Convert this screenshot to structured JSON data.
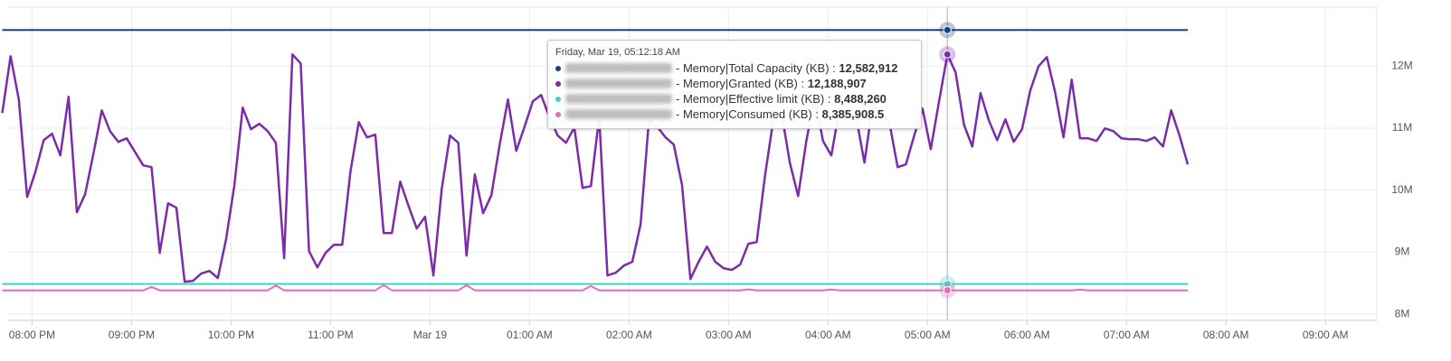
{
  "chart_data": {
    "type": "line",
    "x": [
      "07:42 PM",
      "07:47 PM",
      "07:52 PM",
      "07:57 PM",
      "08:02 PM",
      "08:07 PM",
      "08:12 PM",
      "08:17 PM",
      "08:22 PM",
      "08:27 PM",
      "08:32 PM",
      "08:37 PM",
      "08:42 PM",
      "08:47 PM",
      "08:52 PM",
      "08:57 PM",
      "09:02 PM",
      "09:07 PM",
      "09:12 PM",
      "09:17 PM",
      "09:22 PM",
      "09:27 PM",
      "09:32 PM",
      "09:37 PM",
      "09:42 PM",
      "09:47 PM",
      "09:52 PM",
      "09:57 PM",
      "10:02 PM",
      "10:07 PM",
      "10:12 PM",
      "10:17 PM",
      "10:22 PM",
      "10:27 PM",
      "10:32 PM",
      "10:37 PM",
      "10:42 PM",
      "10:47 PM",
      "10:52 PM",
      "10:57 PM",
      "11:02 PM",
      "11:07 PM",
      "11:12 PM",
      "11:17 PM",
      "11:22 PM",
      "11:27 PM",
      "11:32 PM",
      "11:37 PM",
      "11:42 PM",
      "11:47 PM",
      "11:52 PM",
      "11:57 PM",
      "12:02 AM",
      "12:07 AM",
      "12:12 AM",
      "12:17 AM",
      "12:22 AM",
      "12:27 AM",
      "12:32 AM",
      "12:37 AM",
      "12:42 AM",
      "12:47 AM",
      "12:52 AM",
      "12:57 AM",
      "01:02 AM",
      "01:07 AM",
      "01:12 AM",
      "01:17 AM",
      "01:22 AM",
      "01:27 AM",
      "01:32 AM",
      "01:37 AM",
      "01:42 AM",
      "01:47 AM",
      "01:52 AM",
      "01:57 AM",
      "02:02 AM",
      "02:07 AM",
      "02:12 AM",
      "02:17 AM",
      "02:22 AM",
      "02:27 AM",
      "02:32 AM",
      "02:37 AM",
      "02:42 AM",
      "02:47 AM",
      "02:52 AM",
      "02:57 AM",
      "03:02 AM",
      "03:07 AM",
      "03:12 AM",
      "03:17 AM",
      "03:22 AM",
      "03:27 AM",
      "03:32 AM",
      "03:37 AM",
      "03:42 AM",
      "03:47 AM",
      "03:52 AM",
      "03:57 AM",
      "04:02 AM",
      "04:07 AM",
      "04:12 AM",
      "04:17 AM",
      "04:22 AM",
      "04:27 AM",
      "04:32 AM",
      "04:37 AM",
      "04:42 AM",
      "04:47 AM",
      "04:52 AM",
      "04:57 AM",
      "05:02 AM",
      "05:07 AM",
      "05:12 AM",
      "05:17 AM",
      "05:22 AM",
      "05:27 AM",
      "05:32 AM",
      "05:37 AM",
      "05:42 AM",
      "05:47 AM",
      "05:52 AM",
      "05:57 AM",
      "06:02 AM",
      "06:07 AM",
      "06:12 AM",
      "06:17 AM",
      "06:22 AM",
      "06:27 AM",
      "06:32 AM",
      "06:37 AM",
      "06:42 AM",
      "06:47 AM",
      "06:52 AM",
      "06:57 AM",
      "07:02 AM",
      "07:07 AM",
      "07:12 AM",
      "07:17 AM",
      "07:22 AM",
      "07:27 AM",
      "07:32 AM",
      "07:37 AM"
    ],
    "series": [
      {
        "name": "Memory|Total Capacity (KB)",
        "color": "#1b3f7f",
        "values": [
          12582912,
          12582912,
          12582912,
          12582912,
          12582912,
          12582912,
          12582912,
          12582912,
          12582912,
          12582912,
          12582912,
          12582912,
          12582912,
          12582912,
          12582912,
          12582912,
          12582912,
          12582912,
          12582912,
          12582912,
          12582912,
          12582912,
          12582912,
          12582912,
          12582912,
          12582912,
          12582912,
          12582912,
          12582912,
          12582912,
          12582912,
          12582912,
          12582912,
          12582912,
          12582912,
          12582912,
          12582912,
          12582912,
          12582912,
          12582912,
          12582912,
          12582912,
          12582912,
          12582912,
          12582912,
          12582912,
          12582912,
          12582912,
          12582912,
          12582912,
          12582912,
          12582912,
          12582912,
          12582912,
          12582912,
          12582912,
          12582912,
          12582912,
          12582912,
          12582912,
          12582912,
          12582912,
          12582912,
          12582912,
          12582912,
          12582912,
          12582912,
          12582912,
          12582912,
          12582912,
          12582912,
          12582912,
          12582912,
          12582912,
          12582912,
          12582912,
          12582912,
          12582912,
          12582912,
          12582912,
          12582912,
          12582912,
          12582912,
          12582912,
          12582912,
          12582912,
          12582912,
          12582912,
          12582912,
          12582912,
          12582912,
          12582912,
          12582912,
          12582912,
          12582912,
          12582912,
          12582912,
          12582912,
          12582912,
          12582912,
          12582912,
          12582912,
          12582912,
          12582912,
          12582912,
          12582912,
          12582912,
          12582912,
          12582912,
          12582912,
          12582912,
          12582912,
          12582912,
          12582912,
          12582912,
          12582912,
          12582912,
          12582912,
          12582912,
          12582912,
          12582912,
          12582912,
          12582912,
          12582912,
          12582912,
          12582912,
          12582912,
          12582912,
          12582912,
          12582912,
          12582912,
          12582912,
          12582912,
          12582912,
          12582912,
          12582912,
          12582912,
          12582912,
          12582912,
          12582912,
          12582912,
          12582912,
          12582912,
          12582912
        ]
      },
      {
        "name": "Memory|Granted (KB)",
        "color": "#7b2ca8",
        "values": [
          11244000,
          12160000,
          11462000,
          9891000,
          10298000,
          10807000,
          10909000,
          10560000,
          11505000,
          9644000,
          9935000,
          10589000,
          11287000,
          10953000,
          10778000,
          10836000,
          10618000,
          10400000,
          10371000,
          8989000,
          9789000,
          9716000,
          8524000,
          8538000,
          8655000,
          8698000,
          8582000,
          9207000,
          10080000,
          11331000,
          10982000,
          11069000,
          10953000,
          10764000,
          8902000,
          12189000,
          12044000,
          9018000,
          8756000,
          8989000,
          9120000,
          9120000,
          10298000,
          11098000,
          10851000,
          10895000,
          9309000,
          9309000,
          10138000,
          9745000,
          9382000,
          9571000,
          8625000,
          10007000,
          10880000,
          10764000,
          8945000,
          10255000,
          9629000,
          9920000,
          10735000,
          11462000,
          10633000,
          11025000,
          11433000,
          11535000,
          11171000,
          10880000,
          10764000,
          11011000,
          10036000,
          10065000,
          11185000,
          8625000,
          8669000,
          8785000,
          8844000,
          9455000,
          11127000,
          11025000,
          10851000,
          10735000,
          10080000,
          8567000,
          8844000,
          9091000,
          8844000,
          8742000,
          8713000,
          8800000,
          9135000,
          9164000,
          10225000,
          11127000,
          11244000,
          10444000,
          9905000,
          10807000,
          11491000,
          10793000,
          10560000,
          11316000,
          11244000,
          11171000,
          10444000,
          11389000,
          11200000,
          11098000,
          10371000,
          10415000,
          10880000,
          11316000,
          10662000,
          11433000,
          12188907,
          11898000,
          11055000,
          10705000,
          11564000,
          11127000,
          10807000,
          11142000,
          10778000,
          10982000,
          11607000,
          12000000,
          12145000,
          11578000,
          10851000,
          11782000,
          10836000,
          10836000,
          10793000,
          10996000,
          10953000,
          10836000,
          10822000,
          10822000,
          10793000,
          10851000,
          10705000,
          11287000,
          10880000,
          10415000
        ]
      },
      {
        "name": "Memory|Effective limit (KB)",
        "color": "#3fd6c6",
        "values": [
          8488260,
          8488260,
          8488260,
          8488260,
          8488260,
          8488260,
          8488260,
          8488260,
          8488260,
          8488260,
          8488260,
          8488260,
          8488260,
          8488260,
          8488260,
          8488260,
          8488260,
          8488260,
          8488260,
          8488260,
          8488260,
          8488260,
          8488260,
          8488260,
          8488260,
          8488260,
          8488260,
          8488260,
          8488260,
          8488260,
          8488260,
          8488260,
          8488260,
          8488260,
          8488260,
          8488260,
          8488260,
          8488260,
          8488260,
          8488260,
          8488260,
          8488260,
          8488260,
          8488260,
          8488260,
          8488260,
          8488260,
          8488260,
          8488260,
          8488260,
          8488260,
          8488260,
          8488260,
          8488260,
          8488260,
          8488260,
          8488260,
          8488260,
          8488260,
          8488260,
          8488260,
          8488260,
          8488260,
          8488260,
          8488260,
          8488260,
          8488260,
          8488260,
          8488260,
          8488260,
          8488260,
          8488260,
          8488260,
          8488260,
          8488260,
          8488260,
          8488260,
          8488260,
          8488260,
          8488260,
          8488260,
          8488260,
          8488260,
          8488260,
          8488260,
          8488260,
          8488260,
          8488260,
          8488260,
          8488260,
          8488260,
          8488260,
          8488260,
          8488260,
          8488260,
          8488260,
          8488260,
          8488260,
          8488260,
          8488260,
          8488260,
          8488260,
          8488260,
          8488260,
          8488260,
          8488260,
          8488260,
          8488260,
          8488260,
          8488260,
          8488260,
          8488260,
          8488260,
          8488260,
          8488260,
          8488260,
          8488260,
          8488260,
          8488260,
          8488260,
          8488260,
          8488260,
          8488260,
          8488260,
          8488260,
          8488260,
          8488260,
          8488260,
          8488260,
          8488260,
          8488260,
          8488260,
          8488260,
          8488260,
          8488260,
          8488260,
          8488260,
          8488260,
          8488260,
          8488260,
          8488260,
          8488260,
          8488260,
          8488260
        ]
      },
      {
        "name": "Memory|Consumed (KB)",
        "color": "#e46db5",
        "values": [
          8385000,
          8385000,
          8385000,
          8385000,
          8385000,
          8385000,
          8385000,
          8385000,
          8385000,
          8385000,
          8385000,
          8385000,
          8385000,
          8385000,
          8385000,
          8385000,
          8385000,
          8385000,
          8440000,
          8385000,
          8385000,
          8385000,
          8385000,
          8385000,
          8385000,
          8385000,
          8385000,
          8385000,
          8385000,
          8385000,
          8385000,
          8385000,
          8385000,
          8462000,
          8385000,
          8385000,
          8385000,
          8385000,
          8385000,
          8385000,
          8385000,
          8385000,
          8385000,
          8385000,
          8385000,
          8385000,
          8470000,
          8385000,
          8385000,
          8385000,
          8385000,
          8385000,
          8385000,
          8385000,
          8385000,
          8385000,
          8468000,
          8385000,
          8385000,
          8385000,
          8385000,
          8385000,
          8385000,
          8385000,
          8385000,
          8385000,
          8385000,
          8385000,
          8385000,
          8385000,
          8385000,
          8455000,
          8385000,
          8385000,
          8385000,
          8385000,
          8385000,
          8385000,
          8385000,
          8385000,
          8385000,
          8385000,
          8385000,
          8385000,
          8385000,
          8385000,
          8385000,
          8385000,
          8385000,
          8385000,
          8400000,
          8385000,
          8385000,
          8385000,
          8385000,
          8385000,
          8385000,
          8385000,
          8385000,
          8385000,
          8398000,
          8385000,
          8385000,
          8385000,
          8385000,
          8385000,
          8385000,
          8385000,
          8385000,
          8385000,
          8385000,
          8385000,
          8385000,
          8385000,
          8385908.5,
          8385000,
          8385000,
          8385000,
          8385000,
          8385000,
          8385000,
          8385000,
          8385000,
          8385000,
          8385000,
          8385000,
          8385000,
          8385000,
          8385000,
          8385000,
          8396000,
          8385000,
          8385000,
          8385000,
          8385000,
          8385000,
          8385000,
          8385000,
          8385000,
          8385000,
          8385000,
          8385000,
          8385000,
          8385000
        ]
      }
    ],
    "xlim": [
      "07:45 PM",
      "09:31 AM"
    ],
    "xticks": [
      "08:00 PM",
      "09:00 PM",
      "10:00 PM",
      "11:00 PM",
      {
        "value": "12:00 AM",
        "label": "Mar 19"
      },
      "01:00 AM",
      "02:00 AM",
      "03:00 AM",
      "04:00 AM",
      "05:00 AM",
      "06:00 AM",
      "07:00 AM",
      "08:00 AM",
      "09:00 AM"
    ],
    "ylim": [
      7900000,
      12950000
    ],
    "yticks": [
      {
        "value": 8000000,
        "label": "8M"
      },
      {
        "value": 9000000,
        "label": "9M"
      },
      {
        "value": 10000000,
        "label": "10M"
      },
      {
        "value": 11000000,
        "label": "11M"
      },
      {
        "value": 12000000,
        "label": "12M"
      }
    ],
    "grid": true,
    "tooltip": {
      "title": "Friday, Mar 19, 05:12:18 AM",
      "value_labels": [
        "12,582,912",
        "12,188,907",
        "8,488,260",
        "8,385,908.5"
      ]
    }
  }
}
